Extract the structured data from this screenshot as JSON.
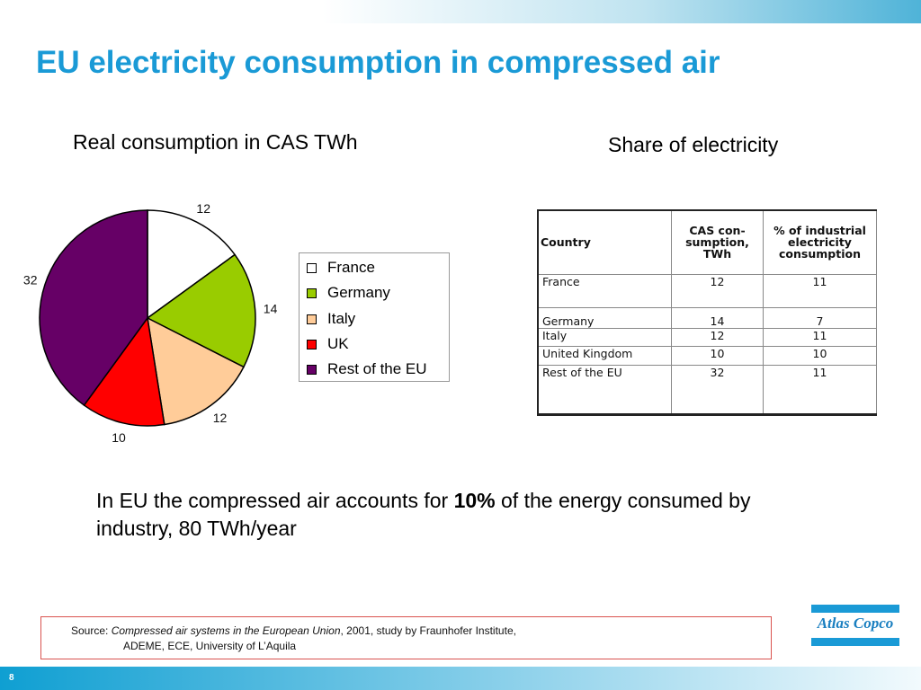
{
  "slide": {
    "page_number": "8",
    "title": "EU electricity consumption in compressed air"
  },
  "left_heading": "Real consumption in CAS TWh",
  "right_heading": "Share of electricity",
  "chart_data": {
    "type": "pie",
    "title": "Real consumption in CAS TWh",
    "categories": [
      "France",
      "Germany",
      "Italy",
      "UK",
      "Rest of the EU"
    ],
    "values": [
      12,
      14,
      12,
      10,
      32
    ],
    "colors": [
      "#ffffff",
      "#99cc00",
      "#ffcc99",
      "#ff0000",
      "#660066"
    ],
    "legend_position": "right"
  },
  "table": {
    "headers": [
      "Country",
      "CAS con-sumption, TWh",
      "% of industrial electricity consumption"
    ],
    "rows": [
      [
        "France",
        "12",
        "11"
      ],
      [
        "Germany",
        "14",
        "7"
      ],
      [
        "Italy",
        "12",
        "11"
      ],
      [
        "United Kingdom",
        "10",
        "10"
      ],
      [
        "Rest of the EU",
        "32",
        "11"
      ]
    ]
  },
  "body_text": {
    "before": "In EU the compressed air accounts for ",
    "bold": "10%",
    "after": " of the energy consumed by industry, 80 TWh/year"
  },
  "source": {
    "label": "Source: ",
    "italic": "Compressed air systems in the European Union",
    "rest": ", 2001, study by Fraunhofer Institute,",
    "line2": "ADEME, ECE, University of L’Aquila"
  },
  "logo": {
    "text": "Atlas Copco",
    "color": "#1a9ad6"
  }
}
